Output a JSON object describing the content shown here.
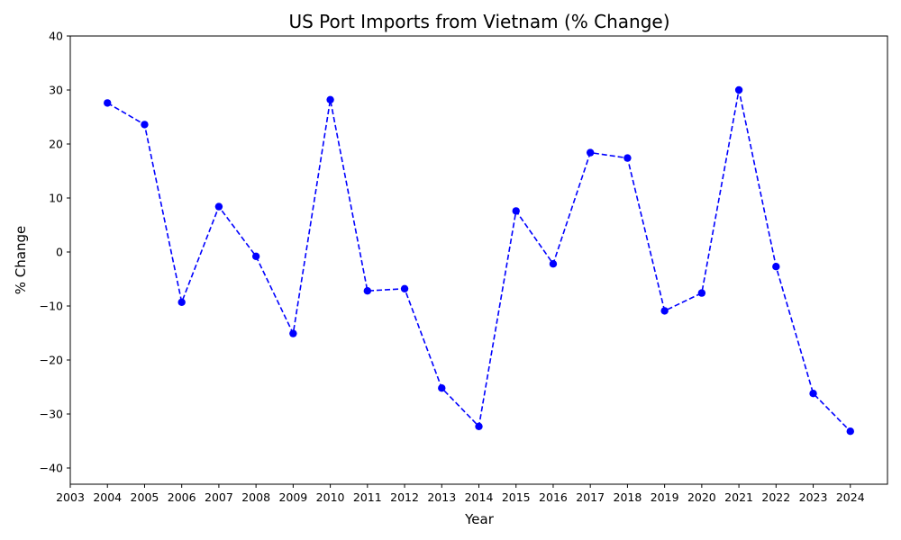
{
  "chart_data": {
    "type": "line",
    "title": "US Port Imports from Vietnam (% Change)",
    "xlabel": "Year",
    "ylabel": "% Change",
    "xlim": [
      2003,
      2025
    ],
    "ylim": [
      -43,
      40
    ],
    "x_ticks": [
      2003,
      2004,
      2005,
      2006,
      2007,
      2008,
      2009,
      2010,
      2011,
      2012,
      2013,
      2014,
      2015,
      2016,
      2017,
      2018,
      2019,
      2020,
      2021,
      2022,
      2023,
      2024
    ],
    "y_ticks": [
      -40,
      -30,
      -20,
      -10,
      0,
      10,
      20,
      30,
      40
    ],
    "grid": false,
    "series": [
      {
        "color": "#0000ff",
        "line_style": "dashed",
        "marker": "circle",
        "x": [
          2004,
          2005,
          2006,
          2007,
          2008,
          2009,
          2010,
          2011,
          2012,
          2013,
          2014,
          2015,
          2016,
          2017,
          2018,
          2019,
          2020,
          2021,
          2022,
          2023,
          2024
        ],
        "values": [
          27.6,
          23.6,
          -9.3,
          8.4,
          -0.8,
          -15.1,
          28.2,
          -7.2,
          -6.8,
          -25.2,
          -32.3,
          7.6,
          -2.2,
          18.4,
          17.4,
          -10.9,
          -7.6,
          30.0,
          -2.7,
          -26.2,
          -33.2
        ]
      }
    ]
  }
}
